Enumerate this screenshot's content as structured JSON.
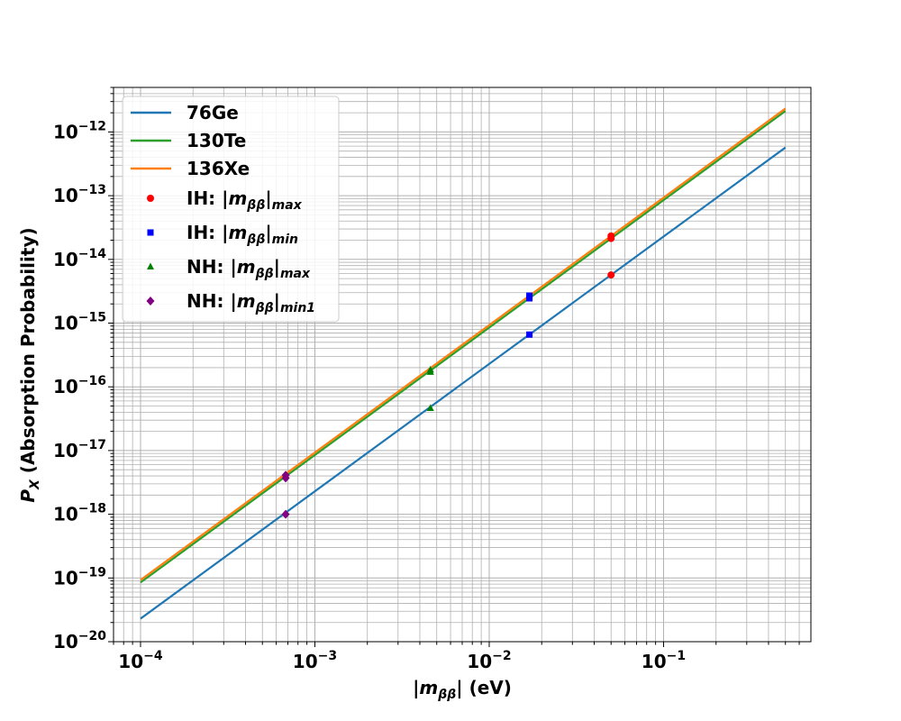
{
  "chart_data": {
    "type": "line",
    "xscale": "log",
    "yscale": "log",
    "xlim": [
      7e-05,
      0.7
    ],
    "ylim": [
      1e-20,
      5e-12
    ],
    "grid": "major and minor",
    "legend_position": "top-left",
    "xlabel": {
      "prefix": "|",
      "main": "m",
      "sub": "ββ",
      "suffix": "| (eV)"
    },
    "ylabel": {
      "main": "P",
      "sub": "X",
      "suffix": " (Absorption Probability)"
    },
    "xticks": [
      {
        "value": 0.0001,
        "base": "10",
        "exp": "−4"
      },
      {
        "value": 0.001,
        "base": "10",
        "exp": "−3"
      },
      {
        "value": 0.01,
        "base": "10",
        "exp": "−2"
      },
      {
        "value": 0.1,
        "base": "10",
        "exp": "−1"
      }
    ],
    "yticks": [
      {
        "value": 1e-20,
        "base": "10",
        "exp": "−20"
      },
      {
        "value": 1e-19,
        "base": "10",
        "exp": "−19"
      },
      {
        "value": 1e-18,
        "base": "10",
        "exp": "−18"
      },
      {
        "value": 1e-17,
        "base": "10",
        "exp": "−17"
      },
      {
        "value": 1e-16,
        "base": "10",
        "exp": "−16"
      },
      {
        "value": 1e-15,
        "base": "10",
        "exp": "−15"
      },
      {
        "value": 1e-14,
        "base": "10",
        "exp": "−14"
      },
      {
        "value": 1e-13,
        "base": "10",
        "exp": "−13"
      },
      {
        "value": 1e-12,
        "base": "10",
        "exp": "−12"
      }
    ],
    "series": [
      {
        "name": "76Ge",
        "kind": "line",
        "color": "#1f77b4",
        "x": [
          0.0001,
          0.5
        ],
        "y": [
          2.3e-20,
          5.7e-13
        ]
      },
      {
        "name": "130Te",
        "kind": "line",
        "color": "#2ca02c",
        "x": [
          0.0001,
          0.5
        ],
        "y": [
          8.5e-20,
          2.13e-12
        ]
      },
      {
        "name": "136Xe",
        "kind": "line",
        "color": "#ff7f0e",
        "x": [
          0.0001,
          0.5
        ],
        "y": [
          9.3e-20,
          2.33e-12
        ]
      }
    ],
    "markers": [
      {
        "name": "IH: |m",
        "sub": "ββ",
        "tail": "|",
        "sub2": "max",
        "marker": "circle",
        "color": "#ff0000",
        "points": [
          {
            "x": 0.05,
            "y": 5.7e-15
          },
          {
            "x": 0.05,
            "y": 2.13e-14
          },
          {
            "x": 0.05,
            "y": 2.33e-14
          }
        ]
      },
      {
        "name": "IH: |m",
        "sub": "ββ",
        "tail": "|",
        "sub2": "min",
        "marker": "square",
        "color": "#0000ff",
        "points": [
          {
            "x": 0.017,
            "y": 6.6e-16
          },
          {
            "x": 0.017,
            "y": 2.45e-15
          },
          {
            "x": 0.017,
            "y": 2.7e-15
          }
        ]
      },
      {
        "name": "NH: |m",
        "sub": "ββ",
        "tail": "|",
        "sub2": "max",
        "marker": "triangle",
        "color": "#008000",
        "points": [
          {
            "x": 0.0046,
            "y": 4.6e-17
          },
          {
            "x": 0.0046,
            "y": 1.7e-16
          },
          {
            "x": 0.0046,
            "y": 1.85e-16
          }
        ]
      },
      {
        "name": "NH: |m",
        "sub": "ββ",
        "tail": "|",
        "sub2": "min1",
        "marker": "diamond",
        "color": "#800080",
        "points": [
          {
            "x": 0.00068,
            "y": 1e-18
          },
          {
            "x": 0.00068,
            "y": 3.7e-18
          },
          {
            "x": 0.00068,
            "y": 4.1e-18
          }
        ]
      }
    ]
  }
}
